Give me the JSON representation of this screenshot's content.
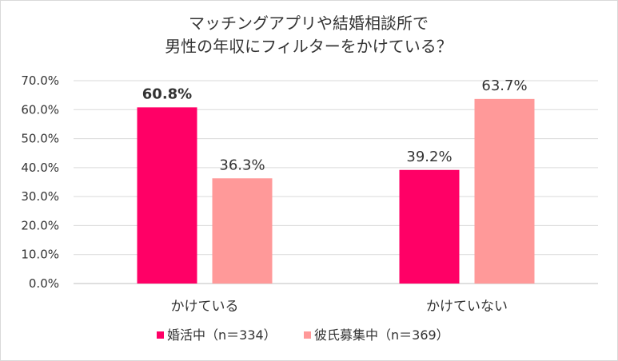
{
  "chart_data": {
    "type": "bar",
    "title_lines": [
      "マッチングアプリや結婚相談所で",
      "男性の年収にフィルターをかけている？"
    ],
    "categories": [
      "かけている",
      "かけていない"
    ],
    "series": [
      {
        "name": "婚活中（n＝334）",
        "color": "#ff0066",
        "values": [
          60.8,
          39.2
        ],
        "labels": [
          "60.8%",
          "39.2%"
        ]
      },
      {
        "name": "彼氏募集中（n＝369）",
        "color": "#ff9999",
        "values": [
          36.3,
          63.7
        ],
        "labels": [
          "36.3%",
          "63.7%"
        ]
      }
    ],
    "ylim": [
      0,
      70
    ],
    "yticks": [
      "0.0%",
      "10.0%",
      "20.0%",
      "30.0%",
      "40.0%",
      "50.0%",
      "60.0%",
      "70.0%"
    ],
    "grid": true,
    "legend_position": "bottom"
  }
}
